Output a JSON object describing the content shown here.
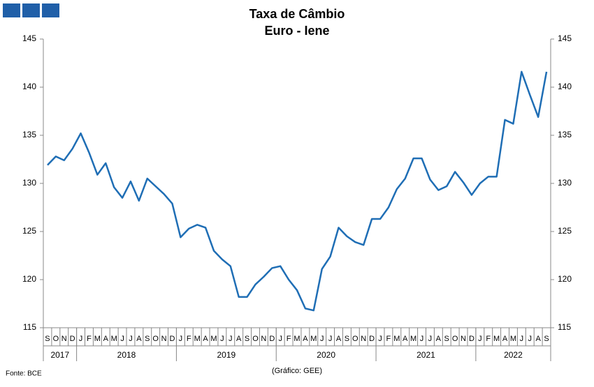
{
  "chart_data": {
    "type": "line",
    "title": "Taxa de Câmbio",
    "subtitle": "Euro - Iene",
    "source": "Fonte: BCE",
    "credit": "(Gráfico: GEE)",
    "categories": [
      "S",
      "O",
      "N",
      "D",
      "J",
      "F",
      "M",
      "A",
      "M",
      "J",
      "J",
      "A",
      "S",
      "O",
      "N",
      "D",
      "J",
      "F",
      "M",
      "A",
      "M",
      "J",
      "J",
      "A",
      "S",
      "O",
      "N",
      "D",
      "J",
      "F",
      "M",
      "A",
      "M",
      "J",
      "J",
      "A",
      "S",
      "O",
      "N",
      "D",
      "J",
      "F",
      "M",
      "A",
      "M",
      "J",
      "J",
      "A",
      "S",
      "O",
      "N",
      "D",
      "J",
      "F",
      "M",
      "A",
      "M",
      "J",
      "J",
      "A",
      "S"
    ],
    "years": [
      "2017",
      "2018",
      "2019",
      "2020",
      "2021",
      "2022"
    ],
    "series": [
      {
        "name": "Euro - Iene",
        "color": "#1f6eb5",
        "values": [
          131.9,
          132.8,
          132.4,
          133.6,
          135.2,
          133.2,
          130.9,
          132.1,
          129.6,
          128.5,
          130.2,
          128.2,
          130.5,
          129.7,
          128.9,
          127.9,
          124.4,
          125.3,
          125.7,
          125.4,
          123.0,
          122.1,
          121.4,
          118.2,
          118.2,
          119.5,
          120.3,
          121.2,
          121.4,
          120.0,
          118.9,
          117.0,
          116.8,
          121.1,
          122.4,
          125.4,
          124.5,
          123.9,
          123.6,
          126.3,
          126.3,
          127.5,
          129.4,
          130.5,
          132.6,
          132.6,
          130.4,
          129.3,
          129.7,
          131.2,
          130.1,
          128.8,
          130.0,
          130.7,
          130.7,
          136.6,
          136.2,
          141.6,
          139.2,
          136.9,
          141.6
        ]
      }
    ],
    "ylim": [
      115,
      145
    ],
    "yticks": [
      115,
      120,
      125,
      130,
      135,
      140,
      145
    ],
    "y2lim": [
      115,
      145
    ],
    "y2ticks": [
      115,
      120,
      125,
      130,
      135,
      140,
      145
    ],
    "grid": false
  }
}
